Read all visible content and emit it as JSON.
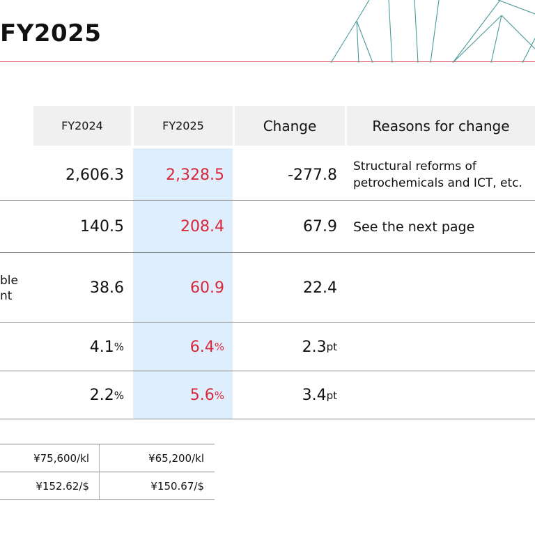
{
  "title": "FY2025",
  "table": {
    "headers": {
      "fy2024": "FY2024",
      "fy2025": "FY2025",
      "change": "Change",
      "reasons": "Reasons for change"
    },
    "rows": [
      {
        "label": "",
        "fy2024": "2,606.3",
        "fy2025": "2,328.5",
        "change": "-277.8",
        "unit": "",
        "change_unit": "",
        "reason_line1": "Structural reforms of",
        "reason_line2": "petrochemicals and ICT, etc."
      },
      {
        "label": "",
        "fy2024": "140.5",
        "fy2025": "208.4",
        "change": "67.9",
        "unit": "",
        "change_unit": "",
        "reason_line1": "See the next page",
        "reason_line2": ""
      },
      {
        "label_line1": "ble",
        "label_line2": "nt",
        "fy2024": "38.6",
        "fy2025": "60.9",
        "change": "22.4",
        "unit": "",
        "change_unit": "",
        "reason_line1": "",
        "reason_line2": ""
      },
      {
        "label": "",
        "fy2024": "4.1",
        "fy2025": "6.4",
        "change": "2.3",
        "unit": "%",
        "change_unit": "pt",
        "reason_line1": "",
        "reason_line2": ""
      },
      {
        "label": "",
        "fy2024": "2.2",
        "fy2025": "5.6",
        "change": "3.4",
        "unit": "%",
        "change_unit": "pt",
        "reason_line1": "",
        "reason_line2": ""
      }
    ]
  },
  "assumptions": [
    {
      "fy2024": "¥75,600/kl",
      "fy2025": "¥65,200/kl"
    },
    {
      "fy2024": "¥152.62/$",
      "fy2025": "¥150.67/$"
    }
  ],
  "colors": {
    "highlight": "#dfeefd",
    "accent_red": "#d8283a",
    "deco_lines": "#4a9a98",
    "title_rule": "#e07080"
  }
}
